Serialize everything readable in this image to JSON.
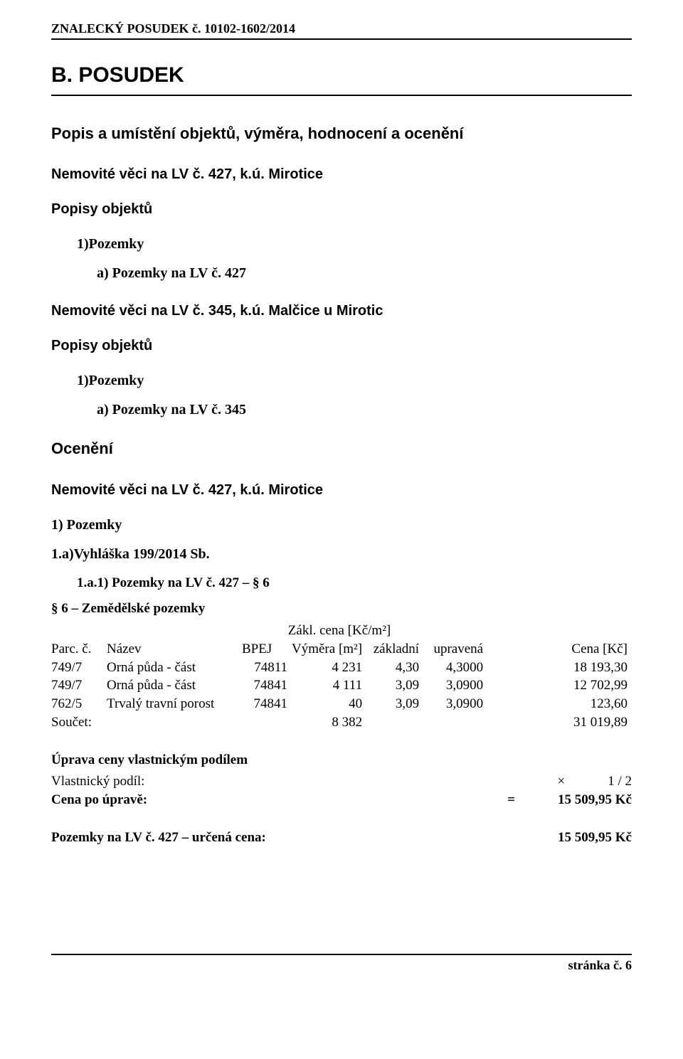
{
  "header": {
    "doc_title": "ZNALECKÝ  POSUDEK č. 10102-1602/2014"
  },
  "section_b": {
    "title": "B.   POSUDEK",
    "subtitle": "Popis a umístění objektů, výměra, hodnocení a ocenění"
  },
  "lv427": {
    "heading": "Nemovité věci na LV č. 427, k.ú. Mirotice",
    "popisy_label": "Popisy objektů",
    "line1": "1)Pozemky",
    "line2": "a)  Pozemky na LV č. 427"
  },
  "lv345": {
    "heading": "Nemovité věci na LV č. 345, k.ú. Malčice u Mirotic",
    "popisy_label": "Popisy objektů",
    "line1": "1)Pozemky",
    "line2": "a)  Pozemky na LV č. 345"
  },
  "oceneni": {
    "label": "Ocenění",
    "heading": "Nemovité věci na LV č. 427, k.ú. Mirotice",
    "pozemky_label": "1)  Pozemky",
    "vyhl_label": "1.a)Vyhláška 199/2014 Sb.",
    "sub_label": "1.a.1)  Pozemky na LV č. 427 – § 6",
    "s6_label": "§ 6 – Zemědělské pozemky"
  },
  "table": {
    "hdr_zakl": "Zákl. cena [Kč/m²]",
    "hdr_parc": "Parc. č.",
    "hdr_name": "Název",
    "hdr_bpej": "BPEJ",
    "hdr_vym": "Výměra [m²]",
    "hdr_zak2": "základní",
    "hdr_upr": "upravená",
    "hdr_cena": "Cena [Kč]",
    "rows": [
      {
        "parc": "749/7",
        "name": "Orná půda - část",
        "bpej": "74811",
        "vym": "4 231",
        "zak": "4,30",
        "upr": "4,3000",
        "cena": "18 193,30"
      },
      {
        "parc": "749/7",
        "name": "Orná půda - část",
        "bpej": "74841",
        "vym": "4 111",
        "zak": "3,09",
        "upr": "3,0900",
        "cena": "12 702,99"
      },
      {
        "parc": "762/5",
        "name": "Trvalý travní porost",
        "bpej": "74841",
        "vym": "40",
        "zak": "3,09",
        "upr": "3,0900",
        "cena": "123,60"
      }
    ],
    "sum_label": "Součet:",
    "sum_vym": "8 382",
    "sum_cena": "31 019,89"
  },
  "adjust": {
    "heading": "Úprava ceny vlastnickým podílem",
    "share_label": "Vlastnický podíl:",
    "share_sym": "×",
    "share_val": "1 / 2",
    "result_label": "Cena po úpravě:",
    "result_sym": "=",
    "result_val": "15 509,95 Kč"
  },
  "final": {
    "label": "Pozemky na LV č. 427 – určená cena:",
    "value": "15 509,95 Kč"
  },
  "footer": {
    "text": "stránka č.   6"
  }
}
